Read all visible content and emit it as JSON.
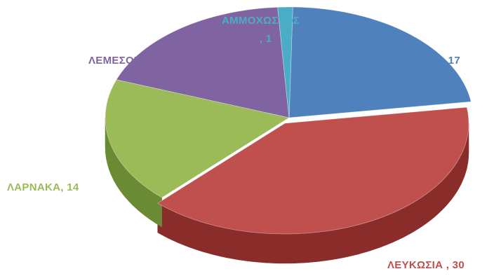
{
  "chart_data": {
    "type": "pie",
    "title": "",
    "style": "3d-exploded-tilt",
    "slices": [
      {
        "label": "ΠΑΦΟΣ",
        "value": 17,
        "label_text": "ΠΑΦΟΣ, 17",
        "color": "#4F81BD",
        "dark": "#2F5B8E"
      },
      {
        "label": "ΛΕΥΚΩΣΙΑ",
        "value": 30,
        "label_text": "ΛΕΥΚΩΣΙΑ , 30",
        "color": "#C0504D",
        "dark": "#8A2C2A"
      },
      {
        "label": "ΛΑΡΝΑΚΑ",
        "value": 14,
        "label_text": "ΛΑΡΝΑΚΑ, 14",
        "color": "#9BBB59",
        "dark": "#6B8A34"
      },
      {
        "label": "ΛΕΜΕΣΟΣ",
        "value": 14,
        "label_text": "ΛΕΜΕΣΟΣ, 14",
        "color": "#8064A2",
        "dark": "#563F75"
      },
      {
        "label": "ΑΜΜΟΧΩΣΤΟΣ",
        "value": 1,
        "label_text_line1": "ΑΜΜΟΧΩΣΤΟΣ",
        "label_text_line2": ", 1",
        "color": "#4BACC6",
        "dark": "#2E7D93"
      }
    ],
    "label_colors": {
      "ΠΑΦΟΣ": "#4F81BD",
      "ΛΕΥΚΩΣΙΑ": "#C0504D",
      "ΛΑΡΝΑΚΑ": "#9BBB59",
      "ΛΕΜΕΣΟΣ": "#8064A2",
      "ΑΜΜΟΧΩΣΤΟΣ": "#4BACC6"
    }
  }
}
